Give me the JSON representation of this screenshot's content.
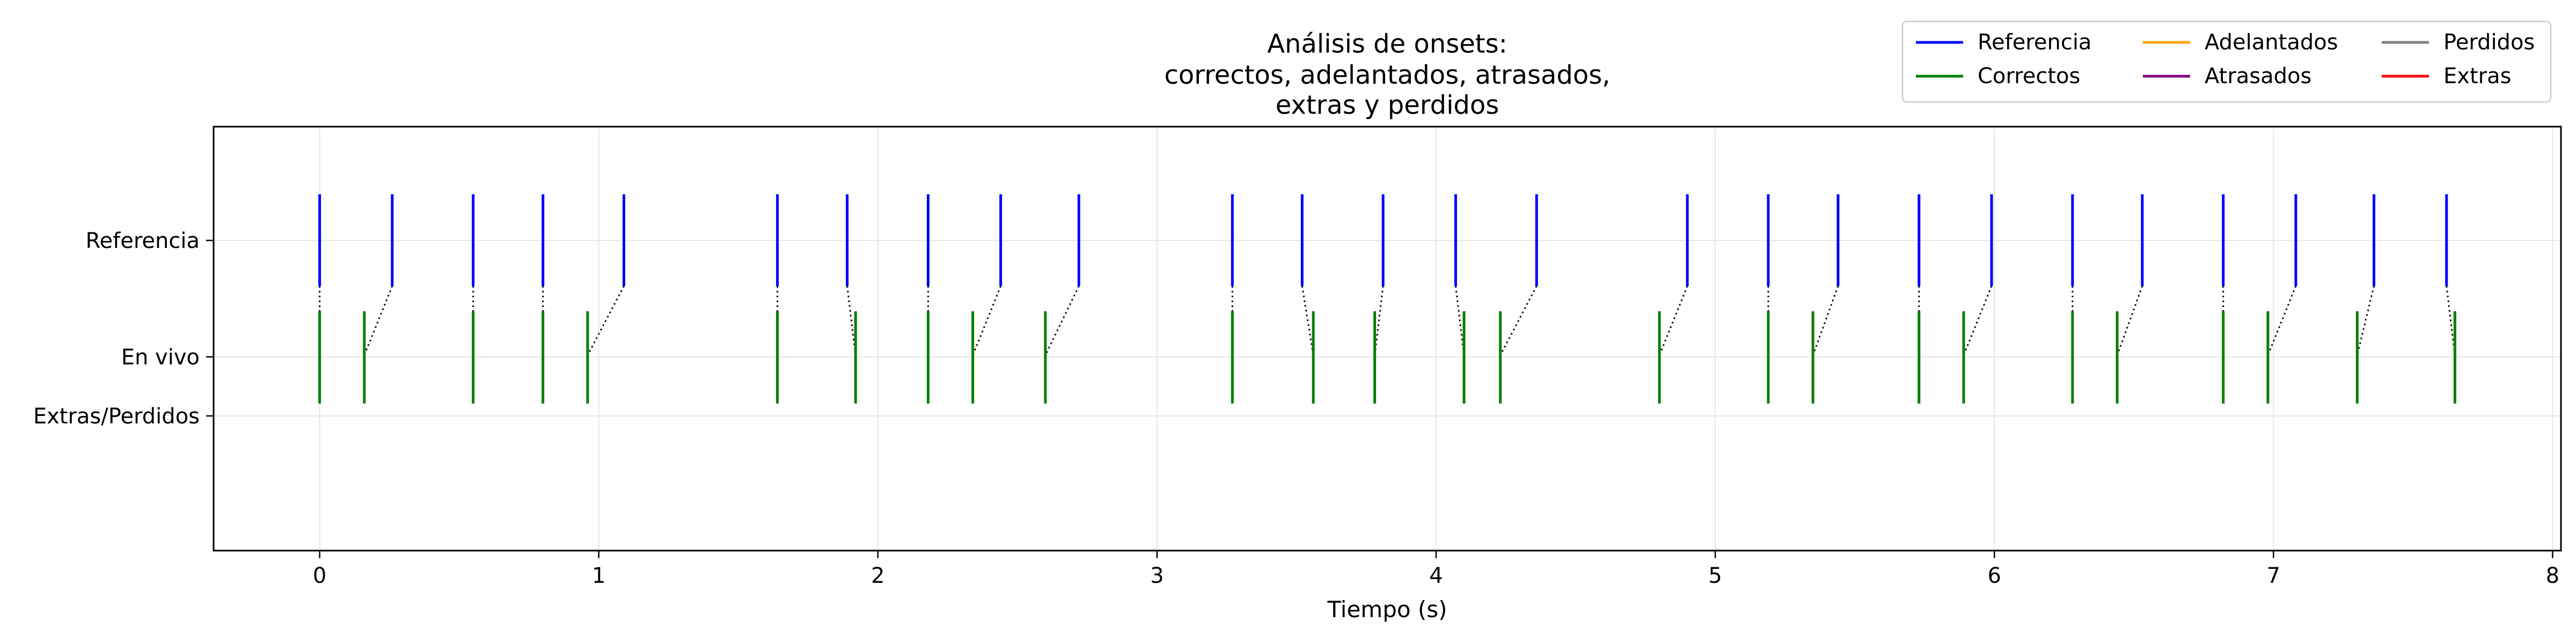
{
  "chart_data": {
    "type": "event-raster",
    "title_lines": [
      "Análisis de onsets:",
      "correctos, adelantados, atrasados,",
      "extras y perdidos"
    ],
    "xlabel": "Tiempo (s)",
    "ylabel": "",
    "xlim": [
      -0.38,
      8.03
    ],
    "xticks": [
      0,
      1,
      2,
      3,
      4,
      5,
      6,
      7,
      8
    ],
    "row_labels": [
      "Referencia",
      "En vivo",
      "Extras/Perdidos"
    ],
    "grid": true,
    "legend_position": "top-right",
    "legend": [
      {
        "label": "Referencia",
        "color": "#0000ff"
      },
      {
        "label": "Correctos",
        "color": "#008000"
      },
      {
        "label": "Adelantados",
        "color": "#ffa500"
      },
      {
        "label": "Atrasados",
        "color": "#800080"
      },
      {
        "label": "Perdidos",
        "color": "#808080"
      },
      {
        "label": "Extras",
        "color": "#ff0000"
      }
    ],
    "referencia": [
      0.0,
      0.26,
      0.55,
      0.8,
      1.09,
      1.64,
      1.89,
      2.18,
      2.44,
      2.72,
      3.27,
      3.52,
      3.81,
      4.07,
      4.36,
      4.9,
      5.19,
      5.44,
      5.73,
      5.99,
      6.28,
      6.53,
      6.82,
      7.08,
      7.36,
      7.62
    ],
    "en_vivo_correctos": [
      0.0,
      0.16,
      0.55,
      0.8,
      0.96,
      1.64,
      1.92,
      2.18,
      2.34,
      2.6,
      3.27,
      3.56,
      3.78,
      4.1,
      4.23,
      4.8,
      5.19,
      5.35,
      5.73,
      5.89,
      6.28,
      6.44,
      6.82,
      6.98,
      7.3,
      7.65
    ],
    "matches": [
      [
        0.0,
        0.0
      ],
      [
        0.26,
        0.16
      ],
      [
        0.55,
        0.55
      ],
      [
        0.8,
        0.8
      ],
      [
        1.09,
        0.96
      ],
      [
        1.64,
        1.64
      ],
      [
        1.89,
        1.92
      ],
      [
        2.18,
        2.18
      ],
      [
        2.44,
        2.34
      ],
      [
        2.72,
        2.6
      ],
      [
        3.27,
        3.27
      ],
      [
        3.52,
        3.56
      ],
      [
        3.81,
        3.78
      ],
      [
        4.07,
        4.1
      ],
      [
        4.36,
        4.23
      ],
      [
        4.9,
        4.8
      ],
      [
        5.19,
        5.19
      ],
      [
        5.44,
        5.35
      ],
      [
        5.73,
        5.73
      ],
      [
        5.99,
        5.89
      ],
      [
        6.28,
        6.28
      ],
      [
        6.53,
        6.44
      ],
      [
        6.82,
        6.82
      ],
      [
        7.08,
        6.98
      ],
      [
        7.36,
        7.3
      ],
      [
        7.62,
        7.65
      ]
    ],
    "adelantados": [],
    "atrasados": [],
    "perdidos": [],
    "extras": []
  }
}
